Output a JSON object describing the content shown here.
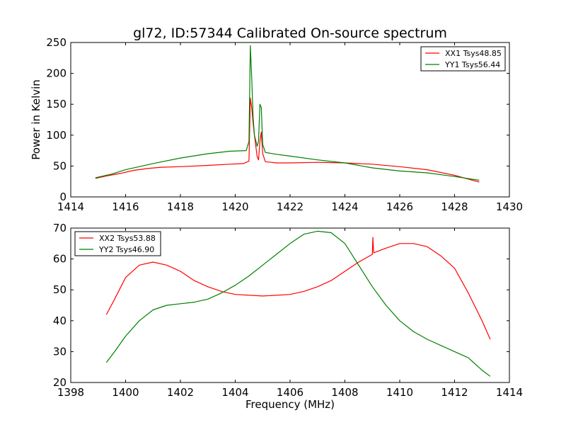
{
  "title": "gl72, ID:57344 Calibrated On-source spectrum",
  "ylabel": "Power in Kelvin",
  "xlabel": "Frequency (MHz)",
  "colors": {
    "red": "#ff0000",
    "green": "#008000",
    "frame": "#000000",
    "background": "#ffffff"
  },
  "chart_data": [
    {
      "type": "line",
      "xlim": [
        1414,
        1430
      ],
      "ylim": [
        0,
        250
      ],
      "xticks": [
        1414,
        1416,
        1418,
        1420,
        1422,
        1424,
        1426,
        1428,
        1430
      ],
      "yticks": [
        0,
        50,
        100,
        150,
        200,
        250
      ],
      "legend_position": "upper right",
      "series": [
        {
          "name": "XX1 Tsys48.85",
          "color": "#ff0000",
          "points": [
            [
              1414.9,
              30
            ],
            [
              1415.3,
              34
            ],
            [
              1415.8,
              38
            ],
            [
              1416.3,
              43
            ],
            [
              1416.8,
              46
            ],
            [
              1417.3,
              48
            ],
            [
              1418,
              49
            ],
            [
              1419,
              51
            ],
            [
              1419.8,
              53
            ],
            [
              1420.3,
              54
            ],
            [
              1420.5,
              58
            ],
            [
              1420.55,
              160
            ],
            [
              1420.6,
              145
            ],
            [
              1420.65,
              120
            ],
            [
              1420.7,
              100
            ],
            [
              1420.8,
              65
            ],
            [
              1420.85,
              60
            ],
            [
              1420.9,
              90
            ],
            [
              1420.95,
              105
            ],
            [
              1421.0,
              70
            ],
            [
              1421.1,
              57
            ],
            [
              1421.5,
              55
            ],
            [
              1422,
              55
            ],
            [
              1423,
              56
            ],
            [
              1424,
              55
            ],
            [
              1425,
              53
            ],
            [
              1426,
              49
            ],
            [
              1427,
              44
            ],
            [
              1428,
              35
            ],
            [
              1428.9,
              24
            ]
          ]
        },
        {
          "name": "YY1 Tsys56.44",
          "color": "#008000",
          "points": [
            [
              1414.9,
              31
            ],
            [
              1415.5,
              37
            ],
            [
              1416,
              44
            ],
            [
              1417,
              54
            ],
            [
              1418,
              63
            ],
            [
              1419,
              70
            ],
            [
              1419.8,
              74
            ],
            [
              1420.4,
              75
            ],
            [
              1420.5,
              90
            ],
            [
              1420.55,
              245
            ],
            [
              1420.6,
              195
            ],
            [
              1420.65,
              130
            ],
            [
              1420.7,
              100
            ],
            [
              1420.8,
              82
            ],
            [
              1420.85,
              90
            ],
            [
              1420.9,
              150
            ],
            [
              1420.95,
              145
            ],
            [
              1421.0,
              85
            ],
            [
              1421.1,
              72
            ],
            [
              1421.5,
              69
            ],
            [
              1422,
              66
            ],
            [
              1423,
              60
            ],
            [
              1424,
              55
            ],
            [
              1425,
              47
            ],
            [
              1426,
              42
            ],
            [
              1427,
              39
            ],
            [
              1428,
              33
            ],
            [
              1428.9,
              27
            ]
          ]
        }
      ]
    },
    {
      "type": "line",
      "xlim": [
        1398,
        1414
      ],
      "ylim": [
        20,
        70
      ],
      "xticks": [
        1398,
        1400,
        1402,
        1404,
        1406,
        1408,
        1410,
        1412,
        1414
      ],
      "yticks": [
        20,
        30,
        40,
        50,
        60,
        70
      ],
      "legend_position": "upper left",
      "series": [
        {
          "name": "XX2 Tsys53.88",
          "color": "#ff0000",
          "points": [
            [
              1399.3,
              42
            ],
            [
              1399.6,
              47
            ],
            [
              1400,
              54
            ],
            [
              1400.5,
              58
            ],
            [
              1401,
              59
            ],
            [
              1401.5,
              58
            ],
            [
              1402,
              56
            ],
            [
              1402.5,
              53
            ],
            [
              1403,
              51
            ],
            [
              1403.5,
              49.5
            ],
            [
              1404,
              48.5
            ],
            [
              1405,
              48
            ],
            [
              1406,
              48.5
            ],
            [
              1406.5,
              49.5
            ],
            [
              1407,
              51
            ],
            [
              1407.5,
              53
            ],
            [
              1408,
              56
            ],
            [
              1408.5,
              59
            ],
            [
              1409,
              61.5
            ],
            [
              1409.02,
              67
            ],
            [
              1409.05,
              62
            ],
            [
              1409.5,
              63.5
            ],
            [
              1410,
              65
            ],
            [
              1410.5,
              65
            ],
            [
              1411,
              64
            ],
            [
              1411.5,
              61
            ],
            [
              1412,
              57
            ],
            [
              1412.5,
              49
            ],
            [
              1413,
              40
            ],
            [
              1413.3,
              34
            ]
          ]
        },
        {
          "name": "YY2 Tsys46.90",
          "color": "#008000",
          "points": [
            [
              1399.3,
              26.5
            ],
            [
              1399.6,
              30
            ],
            [
              1400,
              35
            ],
            [
              1400.5,
              40
            ],
            [
              1401,
              43.5
            ],
            [
              1401.5,
              45
            ],
            [
              1402,
              45.5
            ],
            [
              1402.5,
              46
            ],
            [
              1403,
              47
            ],
            [
              1403.5,
              49
            ],
            [
              1404,
              51.5
            ],
            [
              1404.5,
              54.5
            ],
            [
              1405,
              58
            ],
            [
              1405.5,
              61.5
            ],
            [
              1406,
              65
            ],
            [
              1406.5,
              68
            ],
            [
              1407,
              69
            ],
            [
              1407.5,
              68.5
            ],
            [
              1408,
              65
            ],
            [
              1408.5,
              58
            ],
            [
              1409,
              51
            ],
            [
              1409.5,
              45
            ],
            [
              1410,
              40
            ],
            [
              1410.5,
              36.5
            ],
            [
              1411,
              34
            ],
            [
              1411.5,
              32
            ],
            [
              1412,
              30
            ],
            [
              1412.5,
              28
            ],
            [
              1413,
              24
            ],
            [
              1413.3,
              22
            ]
          ]
        }
      ]
    }
  ]
}
